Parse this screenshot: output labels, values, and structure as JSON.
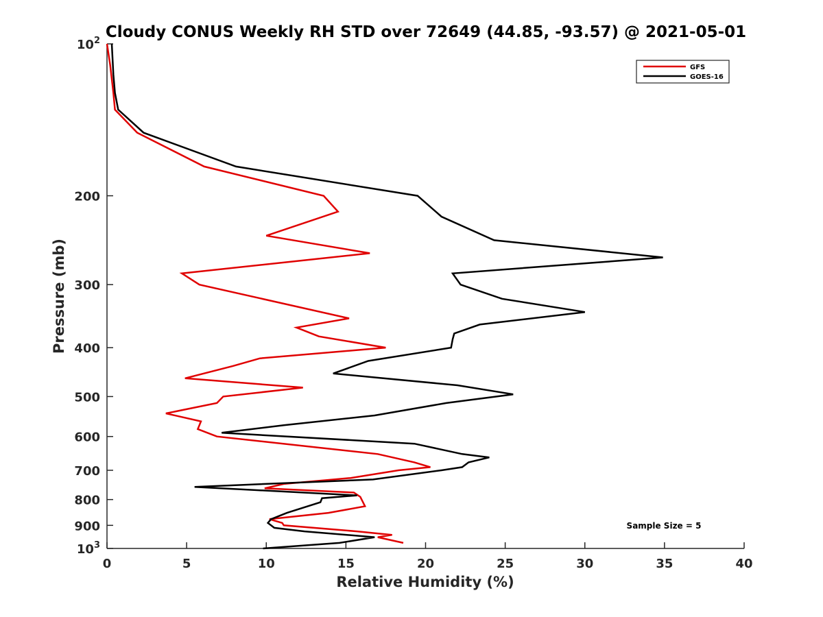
{
  "chart_data": {
    "type": "line",
    "title": "Cloudy CONUS Weekly RH STD over 72649 (44.85, -93.57) @ 2021-05-01",
    "xlabel": "Relative Humidity (%)",
    "ylabel": "Pressure (mb)",
    "xlim": [
      0,
      40
    ],
    "ylim": [
      100,
      1000
    ],
    "y_scale": "log",
    "y_reversed": true,
    "grid": false,
    "legend_position": "top-right",
    "x_ticks": [
      "0",
      "5",
      "10",
      "15",
      "20",
      "25",
      "30",
      "35",
      "40"
    ],
    "x_tick_values": [
      0,
      5,
      10,
      15,
      20,
      25,
      30,
      35,
      40
    ],
    "y_ticks": [
      {
        "value": 100,
        "base": "10",
        "exp": "2"
      },
      {
        "value": 200,
        "label": "200"
      },
      {
        "value": 300,
        "label": "300"
      },
      {
        "value": 400,
        "label": "400"
      },
      {
        "value": 500,
        "label": "500"
      },
      {
        "value": 600,
        "label": "600"
      },
      {
        "value": 700,
        "label": "700"
      },
      {
        "value": 800,
        "label": "800"
      },
      {
        "value": 900,
        "label": "900"
      },
      {
        "value": 1000,
        "base": "10",
        "exp": "3"
      }
    ],
    "annotation": "Sample Size = 5",
    "series": [
      {
        "name": "GFS",
        "color": "#e00000",
        "points": [
          [
            0.0,
            100
          ],
          [
            0.2,
            110
          ],
          [
            0.4,
            125
          ],
          [
            0.5,
            135
          ],
          [
            1.9,
            150
          ],
          [
            6.1,
            175
          ],
          [
            13.6,
            200
          ],
          [
            14.5,
            215
          ],
          [
            10.0,
            240
          ],
          [
            16.5,
            260
          ],
          [
            4.7,
            285
          ],
          [
            5.8,
            300
          ],
          [
            15.2,
            350
          ],
          [
            11.9,
            365
          ],
          [
            13.3,
            380
          ],
          [
            17.5,
            400
          ],
          [
            9.6,
            420
          ],
          [
            7.9,
            435
          ],
          [
            4.9,
            460
          ],
          [
            12.3,
            480
          ],
          [
            7.3,
            500
          ],
          [
            6.9,
            515
          ],
          [
            3.7,
            540
          ],
          [
            5.9,
            560
          ],
          [
            5.7,
            580
          ],
          [
            6.9,
            600
          ],
          [
            17.0,
            650
          ],
          [
            19.3,
            675
          ],
          [
            20.3,
            690
          ],
          [
            18.3,
            700
          ],
          [
            15.3,
            725
          ],
          [
            11.1,
            745
          ],
          [
            9.9,
            760
          ],
          [
            15.5,
            775
          ],
          [
            15.9,
            790
          ],
          [
            16.2,
            825
          ],
          [
            13.9,
            850
          ],
          [
            10.2,
            875
          ],
          [
            11.0,
            890
          ],
          [
            11.1,
            900
          ],
          [
            15.7,
            925
          ],
          [
            17.9,
            940
          ],
          [
            17.0,
            950
          ],
          [
            18.6,
            975
          ]
        ]
      },
      {
        "name": "GOES-16",
        "color": "#000000",
        "points": [
          [
            0.3,
            100
          ],
          [
            0.4,
            115
          ],
          [
            0.5,
            125
          ],
          [
            0.7,
            135
          ],
          [
            2.3,
            150
          ],
          [
            8.1,
            175
          ],
          [
            19.5,
            200
          ],
          [
            21.0,
            220
          ],
          [
            24.3,
            245
          ],
          [
            34.9,
            265
          ],
          [
            21.7,
            285
          ],
          [
            22.2,
            300
          ],
          [
            24.8,
            320
          ],
          [
            30.0,
            340
          ],
          [
            23.4,
            360
          ],
          [
            21.8,
            375
          ],
          [
            21.7,
            385
          ],
          [
            21.6,
            400
          ],
          [
            16.4,
            425
          ],
          [
            14.2,
            450
          ],
          [
            22.0,
            475
          ],
          [
            25.5,
            495
          ],
          [
            21.3,
            515
          ],
          [
            16.8,
            545
          ],
          [
            11.1,
            570
          ],
          [
            7.2,
            590
          ],
          [
            19.3,
            620
          ],
          [
            22.3,
            650
          ],
          [
            24.0,
            660
          ],
          [
            22.7,
            675
          ],
          [
            22.3,
            690
          ],
          [
            21.0,
            700
          ],
          [
            16.7,
            730
          ],
          [
            5.5,
            755
          ],
          [
            15.7,
            785
          ],
          [
            13.5,
            795
          ],
          [
            13.4,
            810
          ],
          [
            11.3,
            850
          ],
          [
            10.3,
            875
          ],
          [
            10.1,
            890
          ],
          [
            10.3,
            900
          ],
          [
            10.5,
            910
          ],
          [
            12.4,
            925
          ],
          [
            16.8,
            950
          ],
          [
            14.6,
            975
          ],
          [
            9.8,
            1000
          ]
        ]
      }
    ]
  }
}
